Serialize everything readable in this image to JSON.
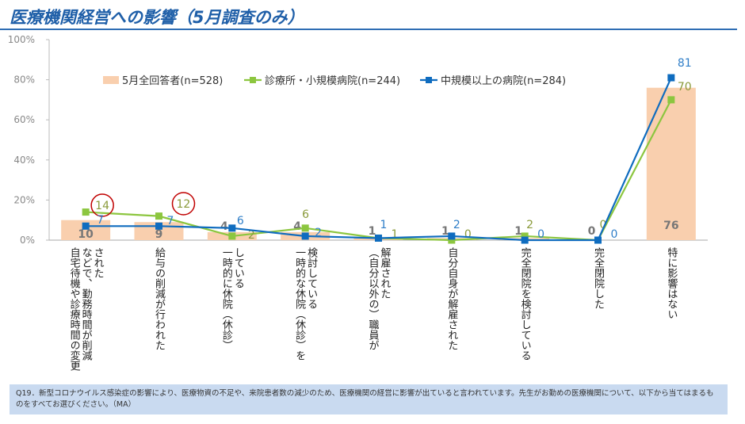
{
  "title": "医療機関経営への影響（5月調査のみ）",
  "note": "Q19．新型コロナウイルス感染症の影響により、医療物資の不足や、来院患者数の減少のため、医療機関の経営に影響が出ていると言われています。先生がお勤めの医療機関について、以下から当てはまるものをすべてお選びください。（MA）",
  "chart_data": {
    "type": "bar+line",
    "categories": [
      "自宅待機や診療時間の変更\nなどで、勤務時間が削減\nされた",
      "給与の削減が行われた",
      "一時的に休院（休診）\nしている",
      "一時的な休院（休診）を\n検討している",
      "（自分以外の）職員が\n解雇された",
      "自分自身が解雇された",
      "完全閉院を検討している",
      "完全閉院した",
      "特に影響はない"
    ],
    "series": [
      {
        "name": "5月全回答者(n=528)",
        "type": "bar",
        "color": "#f9cfae",
        "values": [
          10,
          9,
          4,
          4,
          1,
          1,
          1,
          0,
          76
        ]
      },
      {
        "name": "診療所・小規模病院(n=244)",
        "type": "line",
        "color": "#8cc63f",
        "values": [
          14,
          12,
          2,
          6,
          1,
          0,
          2,
          0,
          70
        ]
      },
      {
        "name": "中規模以上の病院(n=284)",
        "type": "line",
        "color": "#0f6cbf",
        "values": [
          7,
          7,
          6,
          2,
          1,
          2,
          0,
          0,
          81
        ]
      }
    ],
    "yticks": [
      "0%",
      "20%",
      "40%",
      "60%",
      "80%",
      "100%"
    ],
    "ylim": [
      0,
      100
    ],
    "highlighted": [
      "14",
      "12"
    ],
    "highlight_color": "#c00000",
    "legend": "top",
    "grid": false
  }
}
